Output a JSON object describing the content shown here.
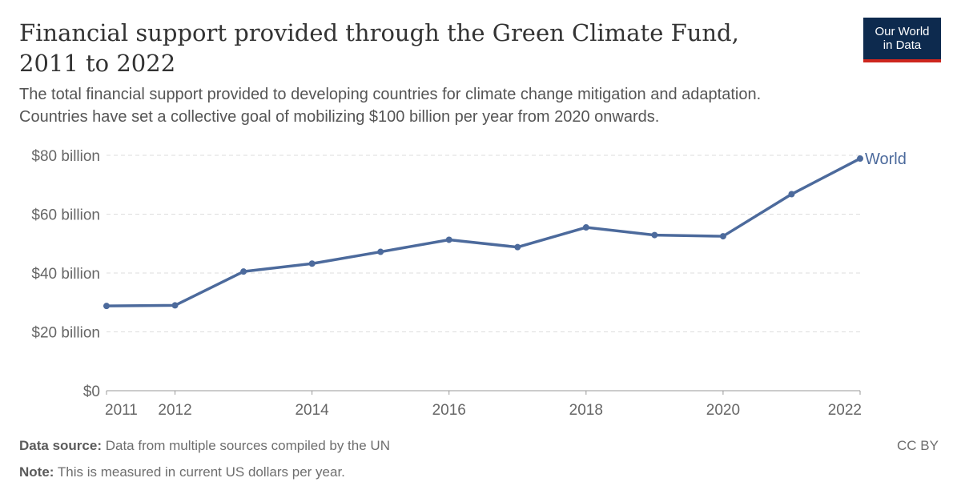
{
  "header": {
    "title_line1": "Financial support provided through the Green Climate Fund,",
    "title_line2": "2011 to 2022",
    "subtitle_line1": "The total financial support provided to developing countries for climate change mitigation and adaptation.",
    "subtitle_line2": "Countries have set a collective goal of mobilizing $100 billion per year from 2020 onwards."
  },
  "logo": {
    "line1": "Our World",
    "line2": "in Data",
    "bg_color": "#0d2a4e",
    "accent_color": "#ce261e"
  },
  "chart_data": {
    "type": "line",
    "title": "Financial support provided through the Green Climate Fund, 2011 to 2022",
    "xlabel": "",
    "ylabel": "",
    "x": [
      2011,
      2012,
      2013,
      2014,
      2015,
      2016,
      2017,
      2018,
      2019,
      2020,
      2021,
      2022
    ],
    "series": [
      {
        "name": "World",
        "color": "#4c6a9c",
        "values": [
          28.8,
          29.0,
          40.5,
          43.2,
          47.2,
          51.3,
          48.8,
          55.5,
          52.9,
          52.5,
          66.8,
          78.9
        ]
      }
    ],
    "ylim": [
      0,
      80
    ],
    "xlim": [
      2011,
      2022
    ],
    "y_ticks": [
      0,
      20,
      40,
      60,
      80
    ],
    "y_tick_labels": [
      "$0",
      "$20 billion",
      "$40 billion",
      "$60 billion",
      "$80 billion"
    ],
    "x_ticks": [
      2011,
      2012,
      2014,
      2016,
      2018,
      2020,
      2022
    ],
    "x_tick_labels": [
      "2011",
      "2012",
      "2014",
      "2016",
      "2018",
      "2020",
      "2022"
    ],
    "grid": true,
    "legend": "end-of-line label"
  },
  "footer": {
    "source_label": "Data source:",
    "source_text": "Data from multiple sources compiled by the UN",
    "note_label": "Note:",
    "note_text": "This is measured in current US dollars per year.",
    "license": "CC BY"
  }
}
